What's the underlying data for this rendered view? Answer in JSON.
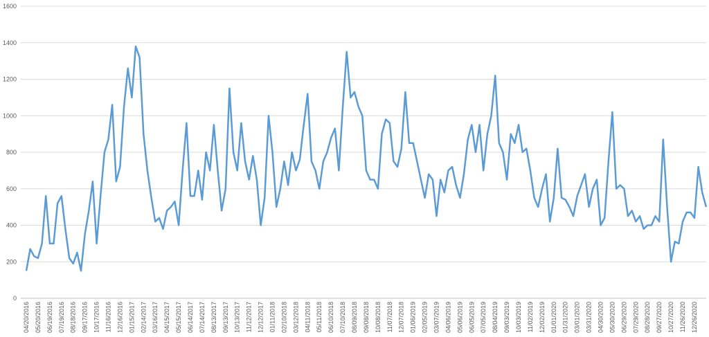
{
  "chart_data": {
    "type": "line",
    "categories": [
      "04/20/2016",
      null,
      null,
      "05/20/2016",
      null,
      null,
      "06/19/2016",
      null,
      null,
      "07/19/2016",
      null,
      null,
      "08/18/2016",
      null,
      null,
      "09/17/2016",
      null,
      null,
      "10/17/2016",
      null,
      null,
      "11/16/2016",
      null,
      null,
      "12/16/2016",
      null,
      null,
      "01/15/2017",
      null,
      null,
      "02/14/2017",
      null,
      null,
      "03/16/2017",
      null,
      null,
      "04/15/2017",
      null,
      null,
      "05/15/2017",
      null,
      null,
      "06/14/2017",
      null,
      null,
      "07/14/2017",
      null,
      null,
      "08/13/2017",
      null,
      null,
      "09/13/2017",
      null,
      null,
      "10/13/2017",
      null,
      null,
      "11/12/2017",
      null,
      null,
      "12/12/2017",
      null,
      null,
      "01/11/2018",
      null,
      null,
      "02/10/2018",
      null,
      null,
      "03/12/2018",
      null,
      null,
      "04/11/2018",
      null,
      null,
      "05/11/2018",
      null,
      null,
      "06/10/2018",
      null,
      null,
      "07/10/2018",
      null,
      null,
      "08/09/2018",
      null,
      null,
      "09/08/2018",
      null,
      null,
      "10/08/2018",
      null,
      null,
      "11/07/2018",
      null,
      null,
      "12/07/2018",
      null,
      null,
      "01/06/2019",
      null,
      null,
      "02/05/2019",
      null,
      null,
      "03/07/2019",
      null,
      null,
      "04/06/2019",
      null,
      null,
      "05/06/2019",
      null,
      null,
      "06/05/2019",
      null,
      null,
      "07/05/2019",
      null,
      null,
      "08/04/2019",
      null,
      null,
      "09/03/2019",
      null,
      null,
      "10/03/2019",
      null,
      null,
      "11/02/2019",
      null,
      null,
      "12/02/2019",
      null,
      null,
      "01/01/2020",
      null,
      null,
      "01/31/2020",
      null,
      null,
      "03/01/2020",
      null,
      null,
      "03/31/2020",
      null,
      null,
      "04/30/2020",
      null,
      null,
      "05/30/2020",
      null,
      null,
      "06/29/2020",
      null,
      null,
      "07/29/2020",
      null,
      null,
      "08/28/2020",
      null,
      null,
      "09/27/2020",
      null,
      null,
      "10/27/2020",
      null,
      null,
      "11/26/2020",
      null,
      null,
      "12/26/2020",
      null,
      null,
      null
    ],
    "series": [
      {
        "color": "#5b9bd5",
        "values": [
          150,
          270,
          230,
          220,
          300,
          560,
          300,
          300,
          520,
          560,
          380,
          220,
          190,
          250,
          150,
          350,
          480,
          640,
          300,
          560,
          800,
          870,
          1060,
          640,
          720,
          1050,
          1260,
          1100,
          1380,
          1320,
          900,
          700,
          550,
          420,
          440,
          380,
          480,
          500,
          530,
          400,
          700,
          960,
          560,
          560,
          700,
          540,
          800,
          700,
          950,
          700,
          480,
          600,
          1150,
          800,
          700,
          960,
          750,
          650,
          780,
          650,
          400,
          550,
          1000,
          800,
          500,
          600,
          750,
          620,
          800,
          700,
          760,
          950,
          1120,
          750,
          700,
          600,
          750,
          800,
          880,
          930,
          700,
          1050,
          1350,
          1100,
          1130,
          1050,
          1000,
          700,
          650,
          650,
          600,
          900,
          980,
          960,
          750,
          720,
          820,
          1130,
          850,
          850,
          750,
          650,
          550,
          680,
          650,
          450,
          650,
          580,
          700,
          720,
          620,
          550,
          680,
          870,
          950,
          800,
          950,
          700,
          900,
          1000,
          1220,
          850,
          800,
          650,
          900,
          850,
          950,
          800,
          820,
          700,
          550,
          500,
          600,
          680,
          420,
          550,
          820,
          550,
          540,
          500,
          450,
          560,
          620,
          680,
          500,
          600,
          650,
          400,
          440,
          750,
          1020,
          600,
          620,
          600,
          450,
          480,
          420,
          450,
          380,
          400,
          400,
          450,
          420,
          870,
          500,
          200,
          310,
          300,
          420,
          470,
          470,
          440,
          720,
          580,
          500
        ]
      }
    ],
    "ylim": [
      0,
      1600
    ],
    "yticks": [
      0,
      200,
      400,
      600,
      800,
      1000,
      1200,
      1400,
      1600
    ],
    "grid": true
  }
}
